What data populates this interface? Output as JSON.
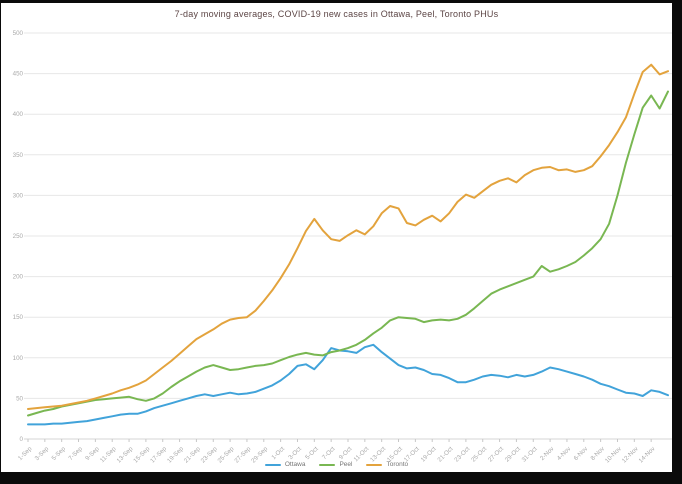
{
  "colors": {
    "background": "#000000",
    "panel": "#ffffff",
    "grid": "#e7e7e7",
    "axis_line": "#d6d6d6",
    "tick_mark": "#c7c7c7",
    "axis_label": "#a9a9a9",
    "title_text": "#5c4545",
    "legend_text": "#767676"
  },
  "chart_data": {
    "type": "line",
    "title": "7-day moving averages, COVID-19 new cases in Ottawa, Peel, Toronto PHUs",
    "xlabel": "",
    "ylabel": "",
    "ylim": [
      0,
      500
    ],
    "yticks": [
      0,
      50,
      100,
      150,
      200,
      250,
      300,
      350,
      400,
      450,
      500
    ],
    "grid": true,
    "legend_position": "bottom",
    "x_tick_every_days": 2,
    "x": [
      "1-Sep",
      "2-Sep",
      "3-Sep",
      "4-Sep",
      "5-Sep",
      "6-Sep",
      "7-Sep",
      "8-Sep",
      "9-Sep",
      "10-Sep",
      "11-Sep",
      "12-Sep",
      "13-Sep",
      "14-Sep",
      "15-Sep",
      "16-Sep",
      "17-Sep",
      "18-Sep",
      "19-Sep",
      "20-Sep",
      "21-Sep",
      "22-Sep",
      "23-Sep",
      "24-Sep",
      "25-Sep",
      "26-Sep",
      "27-Sep",
      "28-Sep",
      "29-Sep",
      "30-Sep",
      "1-Oct",
      "2-Oct",
      "3-Oct",
      "4-Oct",
      "5-Oct",
      "6-Oct",
      "7-Oct",
      "8-Oct",
      "9-Oct",
      "10-Oct",
      "11-Oct",
      "12-Oct",
      "13-Oct",
      "14-Oct",
      "15-Oct",
      "16-Oct",
      "17-Oct",
      "18-Oct",
      "19-Oct",
      "20-Oct",
      "21-Oct",
      "22-Oct",
      "23-Oct",
      "24-Oct",
      "25-Oct",
      "26-Oct",
      "27-Oct",
      "28-Oct",
      "29-Oct",
      "30-Oct",
      "31-Oct",
      "1-Nov",
      "2-Nov",
      "3-Nov",
      "4-Nov",
      "5-Nov",
      "6-Nov",
      "7-Nov",
      "8-Nov",
      "9-Nov",
      "10-Nov",
      "11-Nov",
      "12-Nov",
      "13-Nov",
      "14-Nov",
      "15-Nov",
      "16-Nov"
    ],
    "series": [
      {
        "name": "Ottawa",
        "color": "#41a3da",
        "values": [
          18,
          18,
          18,
          19,
          19,
          20,
          21,
          22,
          24,
          26,
          28,
          30,
          31,
          31,
          34,
          38,
          41,
          44,
          47,
          50,
          53,
          55,
          53,
          55,
          57,
          55,
          56,
          58,
          62,
          66,
          72,
          80,
          90,
          92,
          86,
          97,
          112,
          109,
          108,
          106,
          113,
          116,
          107,
          99,
          91,
          87,
          88,
          85,
          80,
          79,
          75,
          70,
          70,
          73,
          77,
          79,
          78,
          76,
          79,
          77,
          79,
          83,
          88,
          86,
          83,
          80,
          77,
          73,
          68,
          65,
          61,
          57,
          56,
          53,
          60,
          58,
          54
        ]
      },
      {
        "name": "Peel",
        "color": "#79b752",
        "values": [
          29,
          32,
          35,
          37,
          40,
          42,
          44,
          46,
          48,
          49,
          50,
          51,
          52,
          49,
          47,
          50,
          56,
          64,
          71,
          77,
          83,
          88,
          91,
          88,
          85,
          86,
          88,
          90,
          91,
          93,
          97,
          101,
          104,
          106,
          104,
          103,
          107,
          109,
          112,
          116,
          122,
          130,
          137,
          146,
          150,
          149,
          148,
          144,
          146,
          147,
          146,
          148,
          153,
          161,
          170,
          179,
          184,
          188,
          192,
          196,
          200,
          213,
          206,
          209,
          213,
          218,
          226,
          235,
          246,
          265,
          300,
          340,
          375,
          408,
          423,
          407,
          428
        ]
      },
      {
        "name": "Toronto",
        "color": "#e3a33d",
        "values": [
          37,
          38,
          39,
          40,
          41,
          43,
          45,
          47,
          50,
          53,
          56,
          60,
          63,
          67,
          72,
          80,
          88,
          96,
          105,
          114,
          123,
          129,
          135,
          142,
          147,
          149,
          150,
          158,
          170,
          183,
          198,
          215,
          235,
          256,
          271,
          257,
          246,
          244,
          251,
          257,
          252,
          262,
          278,
          287,
          284,
          266,
          263,
          270,
          275,
          268,
          278,
          292,
          301,
          297,
          305,
          313,
          318,
          321,
          316,
          325,
          331,
          334,
          335,
          331,
          332,
          329,
          331,
          336,
          348,
          362,
          378,
          396,
          425,
          452,
          461,
          449,
          453
        ]
      }
    ]
  }
}
